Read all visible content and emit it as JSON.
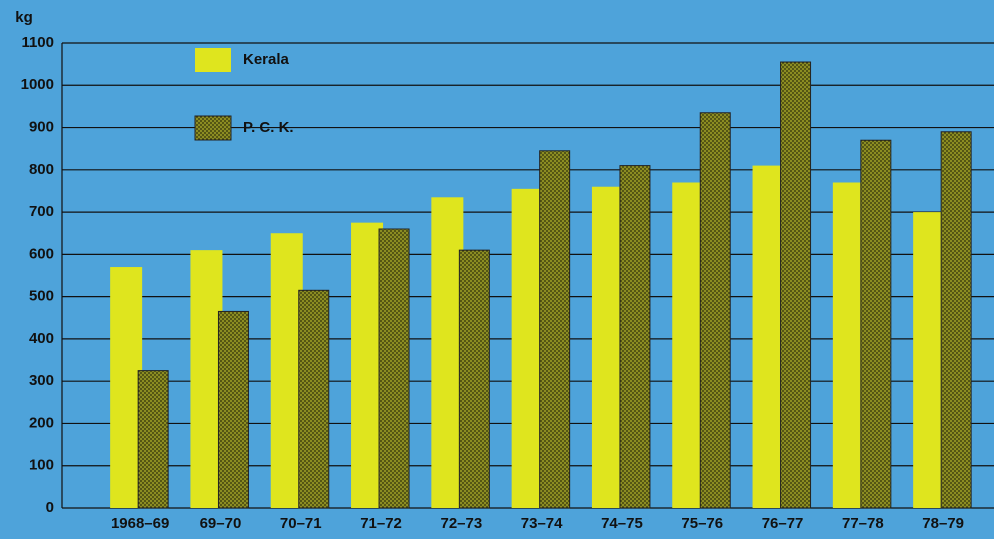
{
  "chart_data": {
    "type": "bar",
    "y_label": "kg",
    "categories": [
      "1968–69",
      "69–70",
      "70–71",
      "71–72",
      "72–73",
      "73–74",
      "74–75",
      "75–76",
      "76–77",
      "77–78",
      "78–79"
    ],
    "series": [
      {
        "name": "Kerala",
        "color": "#dfe51e",
        "values": [
          570,
          610,
          650,
          675,
          735,
          755,
          760,
          770,
          810,
          770,
          700
        ]
      },
      {
        "name": "P. C. K.",
        "color": "#8c8d22",
        "values": [
          325,
          465,
          515,
          660,
          610,
          845,
          810,
          935,
          1055,
          870,
          890
        ]
      }
    ],
    "ylim": [
      0,
      1100
    ],
    "yticks": [
      0,
      100,
      200,
      300,
      400,
      500,
      600,
      700,
      800,
      900,
      1000,
      1100
    ],
    "grid": true
  }
}
